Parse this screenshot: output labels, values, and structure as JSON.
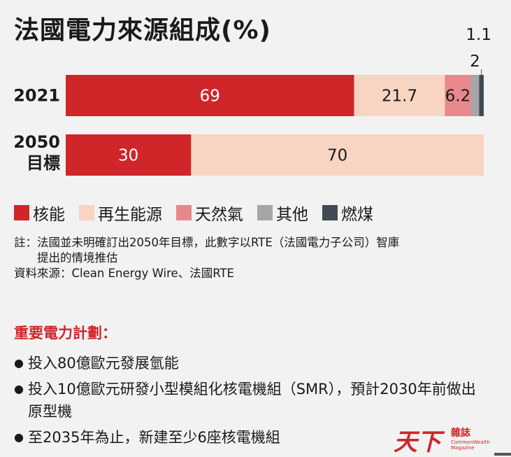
{
  "title": "法國電力來源組成(%)",
  "chart_data": {
    "type": "bar",
    "stacked": true,
    "orientation": "horizontal",
    "xlim": [
      0,
      100
    ],
    "categories": [
      "2021",
      "2050 目標"
    ],
    "series": [
      {
        "name": "核能",
        "color": "#d0262a",
        "values": [
          69,
          30
        ]
      },
      {
        "name": "再生能源",
        "color": "#f8d5c2",
        "values": [
          21.7,
          70
        ]
      },
      {
        "name": "天然氣",
        "color": "#e8888c",
        "values": [
          6.2,
          0
        ]
      },
      {
        "name": "其他",
        "color": "#a6a6a6",
        "values": [
          2,
          0
        ]
      },
      {
        "name": "燃煤",
        "color": "#404a54",
        "values": [
          1.1,
          0
        ]
      }
    ],
    "data_labels": [
      [
        "69",
        "30"
      ],
      [
        "21.7",
        "70"
      ],
      [
        "6.2",
        ""
      ],
      [
        "2",
        ""
      ],
      [
        "1.1",
        ""
      ]
    ],
    "legend_position": "bottom-left"
  },
  "notes": {
    "note_label": "註：",
    "note_text": "法國並未明確訂出2050年目標，此數字以RTE（法國電力子公司）智庫\n提出的情境推估",
    "source": "資料來源：Clean Energy Wire、法國RTE"
  },
  "plans": {
    "heading": "重要電力計劃：",
    "items": [
      "投入80億歐元發展氫能",
      "投入10億歐元研發小型模組化核電機組（SMR），預計2030年前做出原型機",
      "至2035年為止，新建至少6座核電機組"
    ]
  },
  "logo": {
    "main": "天下",
    "chinese": "雜誌",
    "english": "CommonWealth Magazine"
  }
}
